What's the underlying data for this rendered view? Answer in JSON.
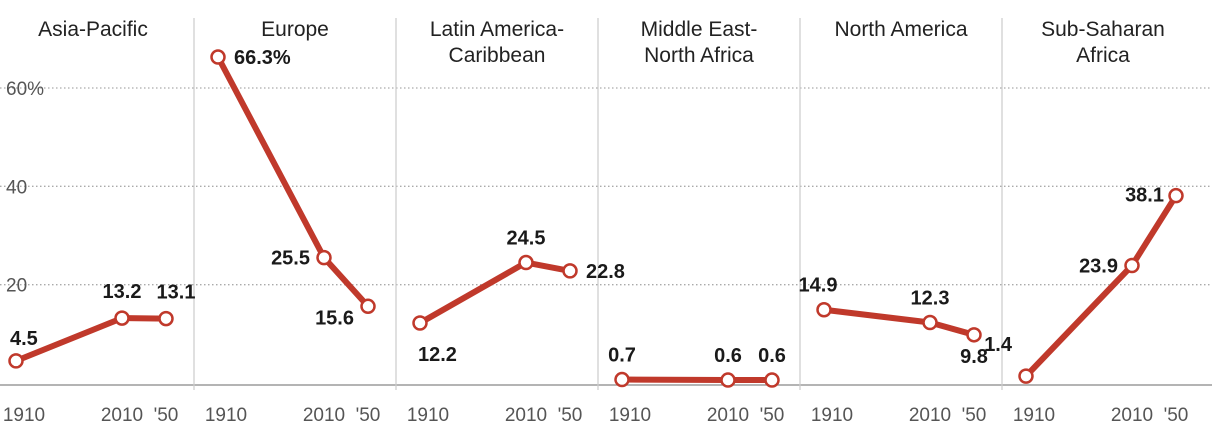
{
  "chart_data": {
    "type": "line",
    "ylim": [
      0,
      70
    ],
    "yticks": [
      {
        "value": 20,
        "label": "20"
      },
      {
        "value": 40,
        "label": "40"
      },
      {
        "value": 60,
        "label": "60%"
      }
    ],
    "x": [
      1910,
      2010,
      2050
    ],
    "x_tick_labels": [
      "1910",
      "2010",
      "'50"
    ],
    "grid": "dotted horizontal",
    "colors": {
      "line": "#c0392b",
      "point_fill": "#ffffff",
      "grid": "#aaaaaa",
      "divider": "#cccccc",
      "axis": "#888888"
    },
    "panels": [
      {
        "title": [
          "Asia-Pacific"
        ],
        "values": [
          4.5,
          13.2,
          13.1
        ],
        "labels": [
          "4.5",
          "13.2",
          "13.1"
        ]
      },
      {
        "title": [
          "Europe"
        ],
        "values": [
          66.3,
          25.5,
          15.6
        ],
        "labels": [
          "66.3%",
          "25.5",
          "15.6"
        ]
      },
      {
        "title": [
          "Latin America-",
          "Caribbean"
        ],
        "values": [
          12.2,
          24.5,
          22.8
        ],
        "labels": [
          "12.2",
          "24.5",
          "22.8"
        ]
      },
      {
        "title": [
          "Middle East-",
          "North Africa"
        ],
        "values": [
          0.7,
          0.6,
          0.6
        ],
        "labels": [
          "0.7",
          "0.6",
          "0.6"
        ]
      },
      {
        "title": [
          "North America"
        ],
        "values": [
          14.9,
          12.3,
          9.8
        ],
        "labels": [
          "14.9",
          "12.3",
          "9.8"
        ]
      },
      {
        "title": [
          "Sub-Saharan",
          "Africa"
        ],
        "values": [
          1.4,
          23.9,
          38.1
        ],
        "labels": [
          "1.4",
          "23.9",
          "38.1"
        ]
      }
    ]
  }
}
